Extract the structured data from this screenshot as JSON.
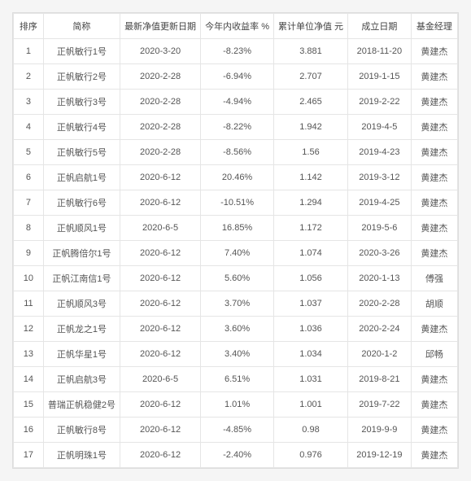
{
  "columns": [
    "排序",
    "简称",
    "最新净值更新日期",
    "今年内收益率 %",
    "累计单位净值 元",
    "成立日期",
    "基金经理"
  ],
  "rows": [
    [
      "1",
      "正帆敏行1号",
      "2020-3-20",
      "-8.23%",
      "3.881",
      "2018-11-20",
      "黄建杰"
    ],
    [
      "2",
      "正帆敏行2号",
      "2020-2-28",
      "-6.94%",
      "2.707",
      "2019-1-15",
      "黄建杰"
    ],
    [
      "3",
      "正帆敏行3号",
      "2020-2-28",
      "-4.94%",
      "2.465",
      "2019-2-22",
      "黄建杰"
    ],
    [
      "4",
      "正帆敏行4号",
      "2020-2-28",
      "-8.22%",
      "1.942",
      "2019-4-5",
      "黄建杰"
    ],
    [
      "5",
      "正帆敏行5号",
      "2020-2-28",
      "-8.56%",
      "1.56",
      "2019-4-23",
      "黄建杰"
    ],
    [
      "6",
      "正帆启航1号",
      "2020-6-12",
      "20.46%",
      "1.142",
      "2019-3-12",
      "黄建杰"
    ],
    [
      "7",
      "正帆敏行6号",
      "2020-6-12",
      "-10.51%",
      "1.294",
      "2019-4-25",
      "黄建杰"
    ],
    [
      "8",
      "正帆顺风1号",
      "2020-6-5",
      "16.85%",
      "1.172",
      "2019-5-6",
      "黄建杰"
    ],
    [
      "9",
      "正帆腾倍尔1号",
      "2020-6-12",
      "7.40%",
      "1.074",
      "2020-3-26",
      "黄建杰"
    ],
    [
      "10",
      "正帆江南信1号",
      "2020-6-12",
      "5.60%",
      "1.056",
      "2020-1-13",
      "傅强"
    ],
    [
      "11",
      "正帆顺风3号",
      "2020-6-12",
      "3.70%",
      "1.037",
      "2020-2-28",
      "胡顺"
    ],
    [
      "12",
      "正帆龙之1号",
      "2020-6-12",
      "3.60%",
      "1.036",
      "2020-2-24",
      "黄建杰"
    ],
    [
      "13",
      "正帆华星1号",
      "2020-6-12",
      "3.40%",
      "1.034",
      "2020-1-2",
      "邱畅"
    ],
    [
      "14",
      "正帆启航3号",
      "2020-6-5",
      "6.51%",
      "1.031",
      "2019-8-21",
      "黄建杰"
    ],
    [
      "15",
      "普瑞正帆稳健2号",
      "2020-6-12",
      "1.01%",
      "1.001",
      "2019-7-22",
      "黄建杰"
    ],
    [
      "16",
      "正帆敏行8号",
      "2020-6-12",
      "-4.85%",
      "0.98",
      "2019-9-9",
      "黄建杰"
    ],
    [
      "17",
      "正帆明珠1号",
      "2020-6-12",
      "-2.40%",
      "0.976",
      "2019-12-19",
      "黄建杰"
    ]
  ],
  "column_widths_class": [
    "col0",
    "col1",
    "col2",
    "col3",
    "col4",
    "col5",
    "col6"
  ]
}
